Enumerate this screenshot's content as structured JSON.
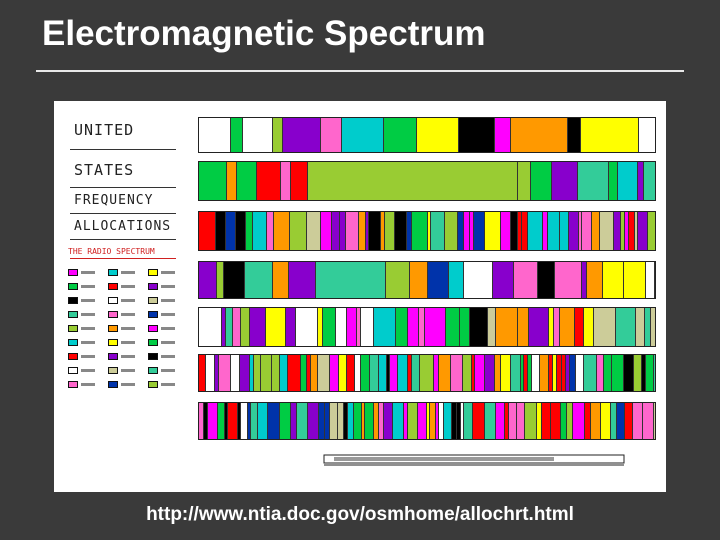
{
  "slide": {
    "title": "Electromagnetic Spectrum",
    "url": "http://www.ntia.doc.gov/osmhome/allochrt.html"
  },
  "chart": {
    "heading_lines": [
      "UNITED",
      "STATES",
      "FREQUENCY",
      "ALLOCATIONS"
    ],
    "subheading": "THE RADIO SPECTRUM"
  },
  "colors": {
    "background": "#3a3a3a",
    "band_palette": [
      "#ff00ff",
      "#00cccc",
      "#ffff00",
      "#00cc44",
      "#ff0000",
      "#8800cc",
      "#000000",
      "#ffffff",
      "#cccc99",
      "#33cc99",
      "#ff66cc",
      "#0033aa",
      "#99cc33",
      "#ff9900"
    ]
  }
}
